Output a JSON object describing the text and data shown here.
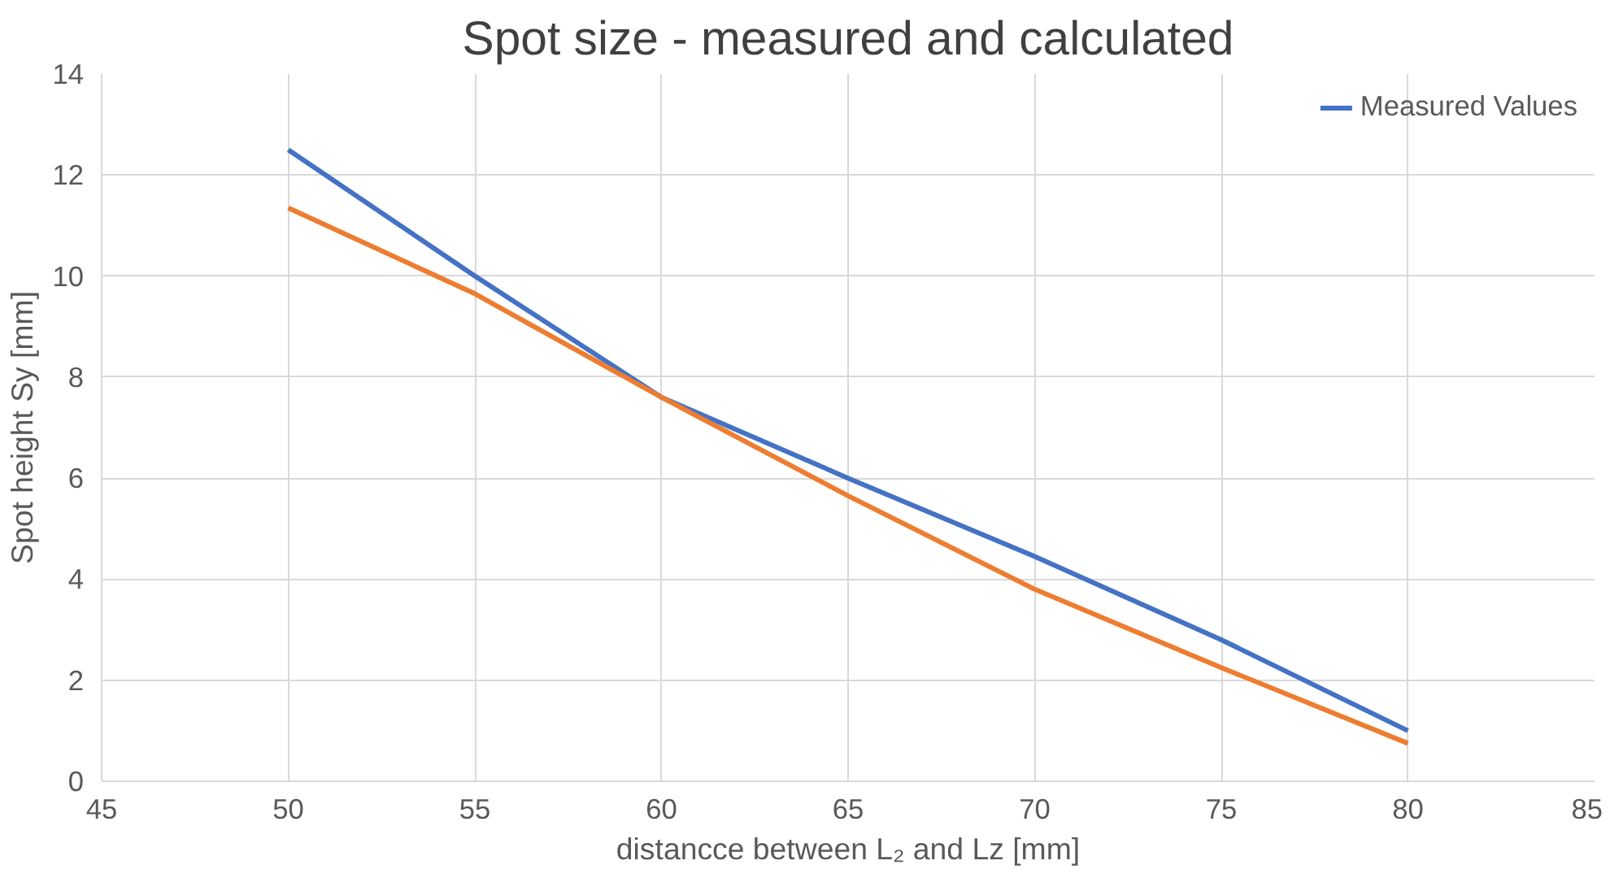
{
  "chart_data": {
    "type": "line",
    "title": "Spot size - measured and calculated",
    "xlabel": "distancce between L₂ and Lz [mm]",
    "ylabel": "Spot height Sy [mm]",
    "x": [
      50,
      55,
      60,
      65,
      70,
      75,
      80
    ],
    "series": [
      {
        "name": "Measured Values",
        "color": "#4472c4",
        "values": [
          12.5,
          10.0,
          7.6,
          6.0,
          4.45,
          2.8,
          1.0
        ]
      },
      {
        "color": "#ed7d31",
        "values": [
          11.35,
          9.65,
          7.6,
          5.65,
          3.8,
          2.25,
          0.75
        ]
      }
    ],
    "xlim": [
      45,
      85
    ],
    "xticks": [
      45,
      50,
      55,
      60,
      65,
      70,
      75,
      80,
      85
    ],
    "ylim": [
      0,
      14
    ],
    "yticks": [
      0,
      2,
      4,
      6,
      8,
      10,
      12,
      14
    ],
    "grid": true,
    "legend": "top right",
    "marker": "none",
    "line_style": "solid"
  }
}
